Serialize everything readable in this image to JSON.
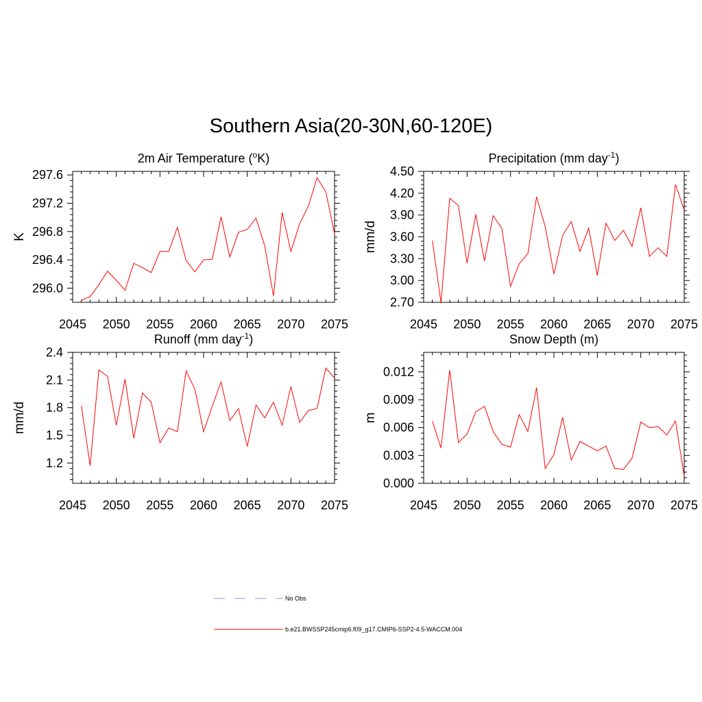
{
  "figure": {
    "title": "Southern Asia(20-30N,60-120E)",
    "line_color": "#ff0000",
    "obs_color": "#a8a8e8"
  },
  "legend": {
    "items": [
      {
        "label": "No Obs",
        "style": "dashed"
      },
      {
        "label": "b.e21.BWSSP245cmip6.f09_g17.CMIP6-SSP2-4.5-WACCM.004",
        "style": "solid"
      }
    ]
  },
  "chart_data": [
    {
      "type": "line",
      "title": "2m Air Temperature (",
      "title_super": "o",
      "title_tail": "K)",
      "ylabel": "K",
      "xlim": [
        2045,
        2075
      ],
      "ylim": [
        295.8,
        297.65
      ],
      "xticks": [
        2045,
        2050,
        2055,
        2060,
        2065,
        2070,
        2075
      ],
      "yticks": [
        "296.0",
        "296.4",
        "296.8",
        "297.2",
        "297.6"
      ],
      "x": [
        2046,
        2047,
        2048,
        2049,
        2050,
        2051,
        2052,
        2053,
        2054,
        2055,
        2056,
        2057,
        2058,
        2059,
        2060,
        2061,
        2062,
        2063,
        2064,
        2065,
        2066,
        2067,
        2068,
        2069,
        2070,
        2071,
        2072,
        2073,
        2074,
        2075
      ],
      "values": [
        295.83,
        295.88,
        296.05,
        296.24,
        296.11,
        295.97,
        296.35,
        296.29,
        296.22,
        296.52,
        296.52,
        296.86,
        296.39,
        296.23,
        296.4,
        296.41,
        297.01,
        296.44,
        296.79,
        296.83,
        296.99,
        296.6,
        295.89,
        297.07,
        296.52,
        296.91,
        297.16,
        297.56,
        297.36,
        296.77
      ]
    },
    {
      "type": "line",
      "title": "Precipitation (mm day",
      "title_super": "-1",
      "title_tail": ")",
      "ylabel": "mm/d",
      "xlim": [
        2045,
        2075
      ],
      "ylim": [
        2.7,
        4.5
      ],
      "xticks": [
        2045,
        2050,
        2055,
        2060,
        2065,
        2070,
        2075
      ],
      "yticks": [
        "2.70",
        "3.00",
        "3.30",
        "3.60",
        "3.90",
        "4.20",
        "4.50"
      ],
      "x": [
        2046,
        2047,
        2048,
        2049,
        2050,
        2051,
        2052,
        2053,
        2054,
        2055,
        2056,
        2057,
        2058,
        2059,
        2060,
        2061,
        2062,
        2063,
        2064,
        2065,
        2066,
        2067,
        2068,
        2069,
        2070,
        2071,
        2072,
        2073,
        2074,
        2075
      ],
      "values": [
        3.55,
        2.69,
        4.13,
        4.03,
        3.24,
        3.91,
        3.27,
        3.89,
        3.72,
        2.92,
        3.23,
        3.37,
        4.15,
        3.74,
        3.09,
        3.62,
        3.81,
        3.4,
        3.72,
        3.07,
        3.79,
        3.55,
        3.69,
        3.47,
        4.0,
        3.33,
        3.45,
        3.33,
        4.32,
        3.97
      ]
    },
    {
      "type": "line",
      "title": "Runoff (mm day",
      "title_super": "-1",
      "title_tail": ")",
      "ylabel": "mm/d",
      "xlim": [
        2045,
        2075
      ],
      "ylim": [
        0.98,
        2.4
      ],
      "xticks": [
        2045,
        2050,
        2055,
        2060,
        2065,
        2070,
        2075
      ],
      "yticks": [
        "1.2",
        "1.5",
        "1.8",
        "2.1",
        "2.4"
      ],
      "x": [
        2046,
        2047,
        2048,
        2049,
        2050,
        2051,
        2052,
        2053,
        2054,
        2055,
        2056,
        2057,
        2058,
        2059,
        2060,
        2061,
        2062,
        2063,
        2064,
        2065,
        2066,
        2067,
        2068,
        2069,
        2070,
        2071,
        2072,
        2073,
        2074,
        2075
      ],
      "values": [
        1.82,
        1.17,
        2.21,
        2.14,
        1.61,
        2.11,
        1.47,
        1.96,
        1.86,
        1.42,
        1.58,
        1.54,
        2.2,
        2.0,
        1.54,
        1.82,
        2.08,
        1.66,
        1.79,
        1.38,
        1.83,
        1.69,
        1.86,
        1.61,
        2.03,
        1.64,
        1.77,
        1.79,
        2.23,
        2.12
      ]
    },
    {
      "type": "line",
      "title": "Snow Depth (m)",
      "title_super": "",
      "title_tail": "",
      "ylabel": "m",
      "xlim": [
        2045,
        2075
      ],
      "ylim": [
        0.0,
        0.0141
      ],
      "xticks": [
        2045,
        2050,
        2055,
        2060,
        2065,
        2070,
        2075
      ],
      "yticks": [
        "0.000",
        "0.003",
        "0.006",
        "0.009",
        "0.012"
      ],
      "x": [
        2046,
        2047,
        2048,
        2049,
        2050,
        2051,
        2052,
        2053,
        2054,
        2055,
        2056,
        2057,
        2058,
        2059,
        2060,
        2061,
        2062,
        2063,
        2064,
        2065,
        2066,
        2067,
        2068,
        2069,
        2070,
        2071,
        2072,
        2073,
        2074,
        2075
      ],
      "values": [
        0.0067,
        0.0038,
        0.0122,
        0.0044,
        0.0053,
        0.0077,
        0.0083,
        0.0056,
        0.0042,
        0.0039,
        0.0074,
        0.0056,
        0.0103,
        0.0016,
        0.0031,
        0.0071,
        0.0025,
        0.0045,
        0.004,
        0.0035,
        0.004,
        0.0016,
        0.0015,
        0.0027,
        0.0066,
        0.006,
        0.0061,
        0.0052,
        0.0067,
        0.0008
      ]
    }
  ]
}
